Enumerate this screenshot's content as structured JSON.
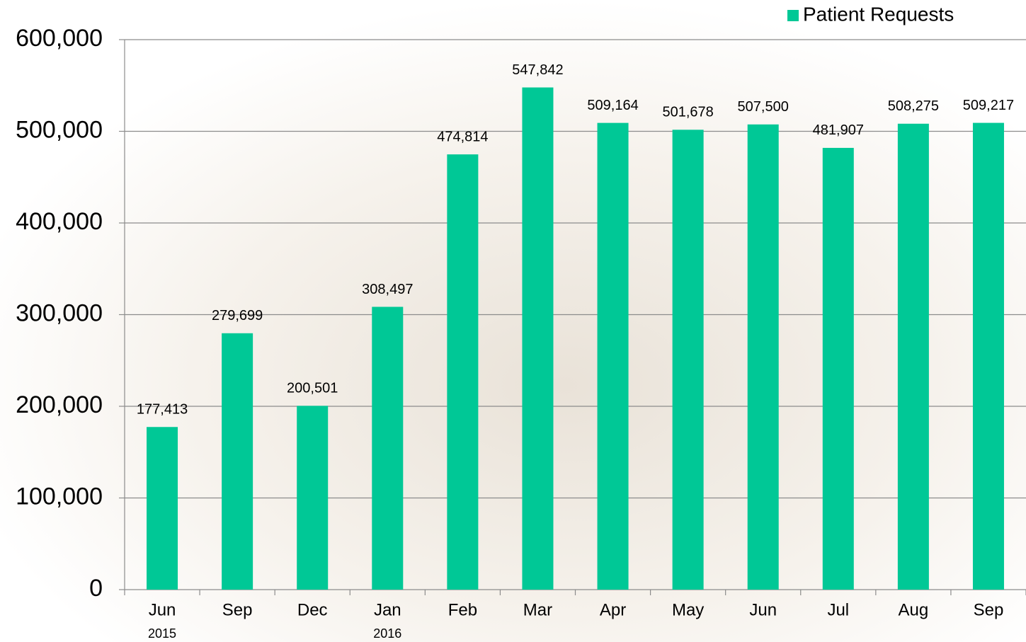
{
  "chart_data": {
    "type": "bar",
    "categories": [
      "Jun",
      "Sep",
      "Dec",
      "Jan",
      "Feb",
      "Mar",
      "Apr",
      "May",
      "Jun",
      "Jul",
      "Aug",
      "Sep"
    ],
    "category_years": [
      "2015",
      null,
      null,
      "2016",
      null,
      null,
      null,
      null,
      null,
      null,
      null,
      null
    ],
    "series": [
      {
        "name": "Patient Requests",
        "color": "#00c896",
        "values": [
          177413,
          279699,
          200501,
          308497,
          474814,
          547842,
          509164,
          501678,
          507500,
          481907,
          508275,
          509217
        ],
        "value_labels": [
          "177,413",
          "279,699",
          "200,501",
          "308,497",
          "474,814",
          "547,842",
          "509,164",
          "501,678",
          "507,500",
          "481,907",
          "508,275",
          "509,217"
        ]
      }
    ],
    "ylim": [
      0,
      600000
    ],
    "yticks": [
      0,
      {
        "value": 100000,
        "label": "100,000"
      },
      {
        "value": 200000,
        "label": "200,000"
      },
      {
        "value": 300000,
        "label": "300,000"
      },
      {
        "value": 400000,
        "label": "400,000"
      },
      {
        "value": 500000,
        "label": "500,000"
      },
      {
        "value": 600000,
        "label": "600,000"
      }
    ],
    "grid": true,
    "legend": "top-right"
  }
}
